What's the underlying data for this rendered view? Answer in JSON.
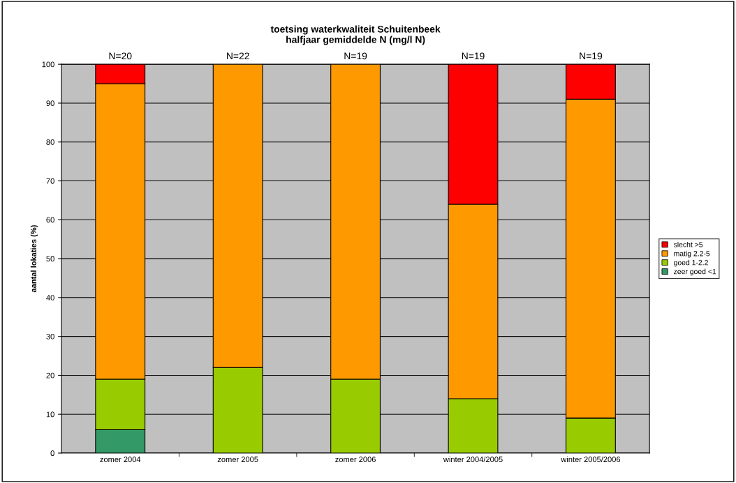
{
  "chart_data": {
    "type": "bar",
    "stacked": true,
    "title": "toetsing waterkwaliteit Schuitenbeek\nhalfjaar gemiddelde N (mg/l N)",
    "ylabel": "aantal lokaties (%)",
    "categories": [
      "zomer 2004",
      "zomer 2005",
      "zomer 2006",
      "winter 2004/2005",
      "winter 2005/2006"
    ],
    "series": [
      {
        "name": "zeer goed <1",
        "color": "#339966",
        "values": [
          6,
          null,
          null,
          null,
          null
        ]
      },
      {
        "name": "goed 1-2.2",
        "color": "#99cc00",
        "values": [
          13,
          22,
          19,
          14,
          9
        ]
      },
      {
        "name": "matig 2.2-5",
        "color": "#ff9900",
        "values": [
          76,
          78,
          81,
          50,
          82
        ]
      },
      {
        "name": "slecht >5",
        "color": "#ff0000",
        "values": [
          5,
          null,
          null,
          36,
          9
        ]
      }
    ],
    "ylim": [
      0,
      100
    ],
    "yticks": [
      0,
      10,
      20,
      30,
      40,
      50,
      60,
      70,
      80,
      90,
      100
    ],
    "grid": "y",
    "legend": "right",
    "annotations": [
      {
        "text": "N=20",
        "x": "zomer 2004",
        "y": 100
      },
      {
        "text": "N=22",
        "x": "zomer 2005",
        "y": 100
      },
      {
        "text": "N=19",
        "x": "zomer 2006",
        "y": 100
      },
      {
        "text": "N=19",
        "x": "winter 2004/2005",
        "y": 100
      },
      {
        "text": "N=19",
        "x": "winter 2005/2006",
        "y": 100
      }
    ]
  }
}
